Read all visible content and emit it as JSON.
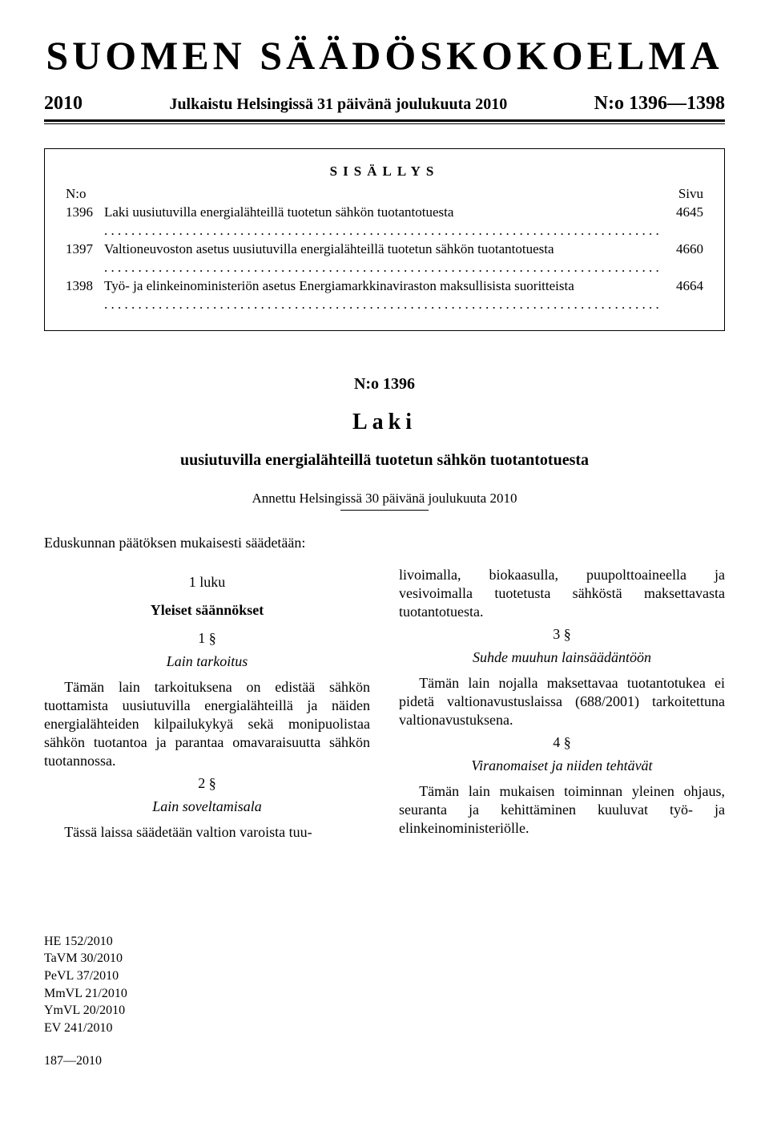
{
  "header": {
    "main_title": "SUOMEN SÄÄDÖSKOKOELMA",
    "year": "2010",
    "pub_info": "Julkaistu Helsingissä 31 päivänä joulukuuta 2010",
    "issue_range": "N:o 1396—1398"
  },
  "toc": {
    "title": "SISÄLLYS",
    "head_left": "N:o",
    "head_right": "Sivu",
    "rows": [
      {
        "num": "1396",
        "text": "Laki uusiutuvilla energialähteillä tuotetun sähkön tuotantotuesta",
        "page": "4645"
      },
      {
        "num": "1397",
        "text": "Valtioneuvoston asetus uusiutuvilla energialähteillä tuotetun sähkön tuotantotuesta",
        "page": "4660"
      },
      {
        "num": "1398",
        "text": "Työ- ja elinkeinoministeriön asetus Energiamarkkinaviraston maksullisista suoritteista",
        "page": "4664"
      }
    ]
  },
  "law": {
    "no": "N:o 1396",
    "word": "Laki",
    "title": "uusiutuvilla energialähteillä tuotetun sähkön tuotantotuesta",
    "date": "Annettu Helsingissä 30 päivänä joulukuuta 2010",
    "preamble": "Eduskunnan päätöksen mukaisesti säädetään:"
  },
  "left": {
    "chapter": "1 luku",
    "chapter_title": "Yleiset säännökset",
    "s1_num": "1 §",
    "s1_title": "Lain tarkoitus",
    "s1_para": "Tämän lain tarkoituksena on edistää sähkön tuottamista uusiutuvilla energialähteillä ja näiden energialähteiden kilpailukykyä sekä monipuolistaa sähkön tuotantoa ja parantaa omavaraisuutta sähkön tuotannossa.",
    "s2_num": "2 §",
    "s2_title": "Lain soveltamisala",
    "s2_para": "Tässä laissa säädetään valtion varoista tuu-"
  },
  "right": {
    "cont_para": "livoimalla, biokaasulla, puupolttoaineella ja vesivoimalla tuotetusta sähköstä maksettavasta tuotantotuesta.",
    "s3_num": "3 §",
    "s3_title": "Suhde muuhun lainsäädäntöön",
    "s3_para": "Tämän lain nojalla maksettavaa tuotantotukea ei pidetä valtionavustuslaissa (688/2001) tarkoitettuna valtionavustuksena.",
    "s4_num": "4 §",
    "s4_title": "Viranomaiset ja niiden tehtävät",
    "s4_para": "Tämän lain mukaisen toiminnan yleinen ohjaus, seuranta ja kehittäminen kuuluvat työ- ja elinkeinoministeriölle."
  },
  "refs": [
    "HE 152/2010",
    "TaVM 30/2010",
    "PeVL 37/2010",
    "MmVL 21/2010",
    "YmVL 20/2010",
    "EV 241/2010"
  ],
  "footer": "187—2010"
}
